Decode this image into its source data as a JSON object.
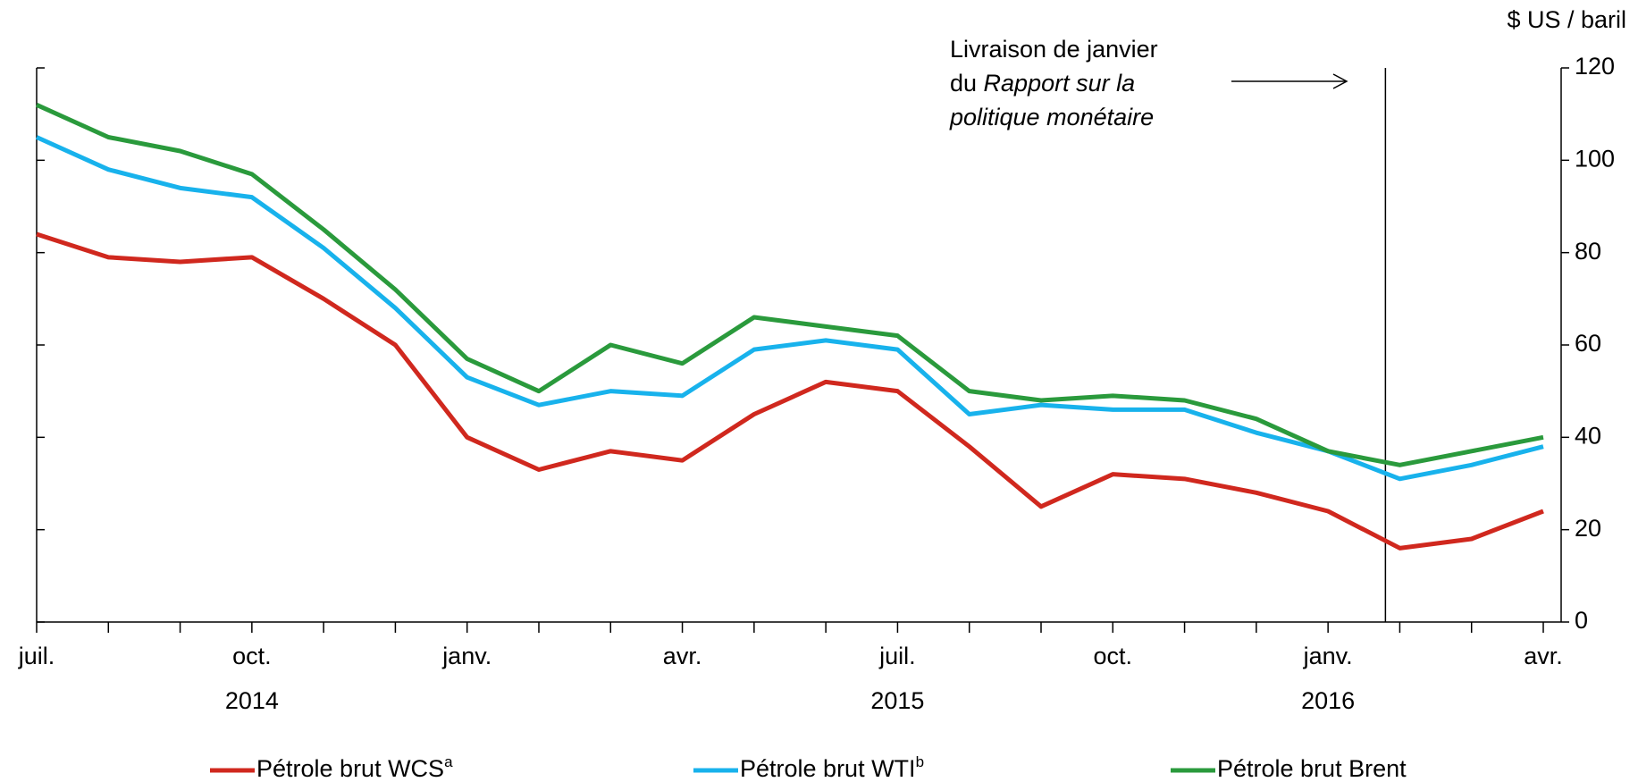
{
  "chart_data": {
    "type": "line",
    "y_axis_label": "$ US / baril",
    "annotation": {
      "line1": "Livraison de janvier",
      "line2_prefix": "du ",
      "line2_italic": "Rapport sur la",
      "line3_italic": "politique monétaire"
    },
    "categories": [
      "juil.",
      null,
      null,
      "oct.",
      null,
      null,
      "janv.",
      null,
      null,
      "avr.",
      null,
      null,
      "juil.",
      null,
      null,
      "oct.",
      null,
      null,
      "janv.",
      null,
      null,
      "avr."
    ],
    "year_labels": [
      "2014",
      "2015",
      "2016"
    ],
    "series": [
      {
        "name": "Pétrole brut WCS",
        "note": "a",
        "color": "#d0281e",
        "values": [
          84,
          79,
          78,
          79,
          70,
          60,
          40,
          33,
          37,
          35,
          45,
          52,
          50,
          38,
          25,
          32,
          31,
          28,
          24,
          16,
          18,
          24
        ]
      },
      {
        "name": "Pétrole brut WTI",
        "note": "b",
        "color": "#18b2ec",
        "values": [
          105,
          98,
          94,
          92,
          81,
          68,
          53,
          47,
          50,
          49,
          59,
          61,
          59,
          45,
          47,
          46,
          46,
          41,
          37,
          31,
          34,
          38
        ]
      },
      {
        "name": "Pétrole brut Brent",
        "color": "#2a9a3c",
        "values": [
          112,
          105,
          102,
          97,
          85,
          72,
          57,
          50,
          60,
          56,
          66,
          64,
          62,
          50,
          48,
          49,
          48,
          44,
          37,
          34,
          37,
          40
        ]
      }
    ],
    "ylim": [
      0,
      120
    ],
    "yticks": [
      0,
      20,
      40,
      60,
      80,
      100,
      120
    ],
    "y_axis_side": "right",
    "grid": false
  }
}
